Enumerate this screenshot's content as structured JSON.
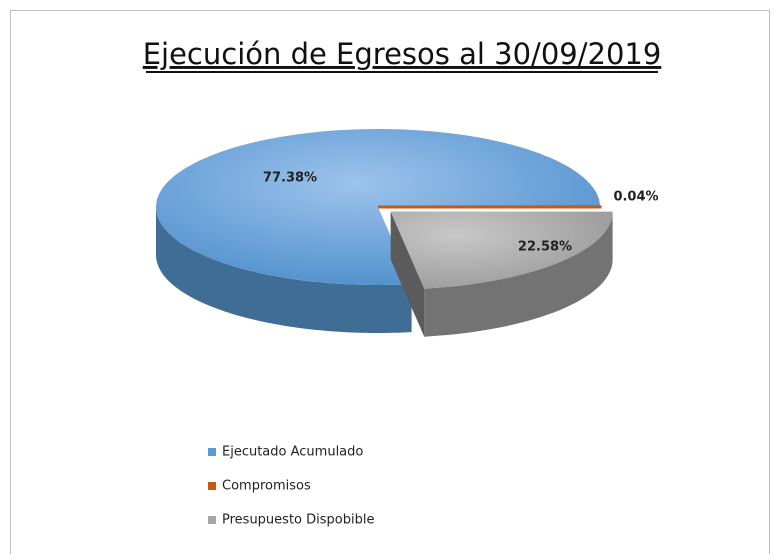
{
  "chart_data": {
    "type": "pie3d",
    "title": "Ejecución de Egresos al 30/09/2019",
    "categories": [
      "Ejecutado Acumulado",
      "Compromisos",
      "Presupuesto Dispobible"
    ],
    "values": [
      77.38,
      0.04,
      22.58
    ],
    "value_labels": [
      "77.38%",
      "0.04%",
      "22.58%"
    ],
    "colors": [
      "#5b9bd5",
      "#c55a11",
      "#a5a5a5"
    ],
    "legend": "bottom"
  }
}
